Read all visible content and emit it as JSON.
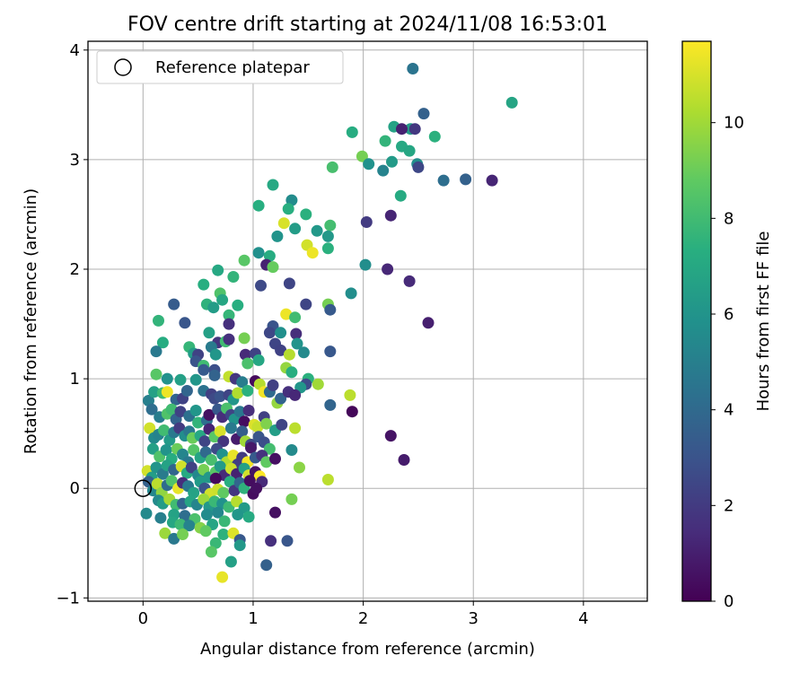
{
  "chart_data": {
    "type": "scatter",
    "title": "FOV centre drift starting at 2024/11/08 16:53:01",
    "xlabel": "Angular distance from reference (arcmin)",
    "ylabel": "Rotation from reference (arcmin)",
    "xlim": [
      -0.5,
      4.58
    ],
    "ylim": [
      -1.03,
      4.08
    ],
    "xticks": [
      0,
      1,
      2,
      3,
      4
    ],
    "yticks": [
      -1,
      0,
      1,
      2,
      3,
      4
    ],
    "grid": true,
    "legend": {
      "location": "upper-left",
      "entries": [
        "Reference platepar"
      ]
    },
    "reference_point": {
      "x": 0,
      "y": 0
    },
    "colorbar": {
      "label": "Hours from first FF file",
      "colormap": "viridis",
      "range": [
        0,
        11.7
      ],
      "ticks": [
        0,
        2,
        4,
        6,
        8,
        10
      ]
    },
    "points": [
      [
        2.45,
        3.83,
        4.5
      ],
      [
        3.35,
        3.52,
        6.8
      ],
      [
        2.55,
        3.42,
        3.6
      ],
      [
        2.28,
        3.3,
        6.7
      ],
      [
        2.43,
        3.28,
        6.4
      ],
      [
        2.35,
        3.28,
        1.1
      ],
      [
        2.47,
        3.28,
        1.9
      ],
      [
        1.9,
        3.25,
        7.2
      ],
      [
        2.2,
        3.17,
        7.6
      ],
      [
        2.35,
        3.12,
        7.0
      ],
      [
        2.65,
        3.21,
        7.4
      ],
      [
        2.42,
        3.08,
        6.9
      ],
      [
        1.99,
        3.03,
        9.2
      ],
      [
        2.05,
        2.96,
        5.9
      ],
      [
        2.18,
        2.9,
        5.2
      ],
      [
        2.26,
        2.98,
        6.3
      ],
      [
        2.49,
        2.96,
        5.7
      ],
      [
        2.5,
        2.93,
        2.5
      ],
      [
        1.72,
        2.93,
        8.2
      ],
      [
        2.73,
        2.81,
        4.2
      ],
      [
        2.93,
        2.82,
        3.6
      ],
      [
        3.17,
        2.81,
        1.2
      ],
      [
        1.18,
        2.77,
        7.0
      ],
      [
        2.34,
        2.67,
        7.1
      ],
      [
        1.05,
        2.58,
        7.3
      ],
      [
        1.35,
        2.63,
        5.6
      ],
      [
        1.32,
        2.55,
        7.3
      ],
      [
        1.28,
        2.42,
        11.0
      ],
      [
        1.48,
        2.5,
        7.4
      ],
      [
        2.03,
        2.43,
        2.0
      ],
      [
        2.25,
        2.49,
        1.2
      ],
      [
        1.38,
        2.37,
        6.4
      ],
      [
        1.58,
        2.35,
        6.2
      ],
      [
        1.7,
        2.4,
        8.1
      ],
      [
        1.68,
        2.3,
        6.2
      ],
      [
        1.22,
        2.3,
        6.0
      ],
      [
        1.49,
        2.22,
        10.9
      ],
      [
        1.68,
        2.19,
        7.4
      ],
      [
        1.54,
        2.15,
        11.4
      ],
      [
        0.92,
        2.08,
        8.6
      ],
      [
        1.05,
        2.15,
        5.8
      ],
      [
        1.15,
        2.12,
        7.2
      ],
      [
        1.12,
        2.04,
        1.1
      ],
      [
        1.18,
        2.02,
        8.9
      ],
      [
        2.02,
        2.04,
        5.7
      ],
      [
        0.68,
        1.99,
        7.0
      ],
      [
        0.55,
        1.86,
        7.3
      ],
      [
        0.82,
        1.93,
        7.6
      ],
      [
        2.22,
        2.0,
        1.3
      ],
      [
        2.42,
        1.89,
        1.4
      ],
      [
        1.07,
        1.85,
        2.6
      ],
      [
        1.33,
        1.87,
        2.4
      ],
      [
        0.7,
        1.78,
        8.4
      ],
      [
        0.72,
        1.72,
        6.9
      ],
      [
        0.58,
        1.68,
        7.5
      ],
      [
        0.64,
        1.65,
        6.4
      ],
      [
        0.28,
        1.68,
        3.4
      ],
      [
        0.78,
        1.58,
        7.7
      ],
      [
        0.86,
        1.67,
        7.3
      ],
      [
        1.48,
        1.68,
        2.4
      ],
      [
        1.68,
        1.68,
        9.2
      ],
      [
        1.7,
        1.63,
        3.3
      ],
      [
        1.89,
        1.78,
        5.7
      ],
      [
        1.3,
        1.59,
        11.4
      ],
      [
        1.38,
        1.56,
        8.0
      ],
      [
        0.14,
        1.53,
        7.6
      ],
      [
        0.38,
        1.51,
        3.1
      ],
      [
        0.78,
        1.5,
        1.6
      ],
      [
        2.59,
        1.51,
        1.0
      ],
      [
        1.18,
        1.48,
        3.0
      ],
      [
        1.15,
        1.42,
        2.5
      ],
      [
        1.25,
        1.42,
        5.8
      ],
      [
        1.39,
        1.41,
        1.5
      ],
      [
        0.6,
        1.42,
        6.6
      ],
      [
        0.92,
        1.37,
        9.2
      ],
      [
        0.18,
        1.33,
        7.2
      ],
      [
        0.42,
        1.29,
        7.7
      ],
      [
        0.68,
        1.33,
        1.8
      ],
      [
        0.75,
        1.34,
        8.0
      ],
      [
        0.78,
        1.36,
        1.6
      ],
      [
        1.2,
        1.32,
        2.4
      ],
      [
        0.12,
        1.25,
        4.7
      ],
      [
        0.46,
        1.23,
        6.4
      ],
      [
        0.5,
        1.22,
        2.3
      ],
      [
        0.62,
        1.29,
        4.8
      ],
      [
        0.66,
        1.22,
        6.1
      ],
      [
        0.93,
        1.22,
        1.4
      ],
      [
        1.02,
        1.23,
        2.3
      ],
      [
        1.25,
        1.26,
        2.3
      ],
      [
        1.4,
        1.32,
        6.0
      ],
      [
        1.46,
        1.24,
        5.5
      ],
      [
        1.7,
        1.25,
        3.2
      ],
      [
        0.48,
        1.16,
        3.0
      ],
      [
        0.55,
        1.12,
        8.0
      ],
      [
        0.95,
        1.14,
        8.3
      ],
      [
        1.05,
        1.17,
        6.9
      ],
      [
        0.55,
        1.08,
        3.3
      ],
      [
        0.65,
        1.08,
        2.8
      ],
      [
        0.12,
        1.04,
        8.6
      ],
      [
        0.22,
        1.0,
        5.9
      ],
      [
        0.34,
        0.99,
        6.6
      ],
      [
        0.48,
        0.99,
        6.1
      ],
      [
        0.65,
        1.03,
        3.7
      ],
      [
        0.78,
        1.02,
        10.6
      ],
      [
        0.84,
        1.0,
        1.8
      ],
      [
        1.3,
        1.1,
        9.8
      ],
      [
        1.33,
        1.22,
        10.4
      ],
      [
        1.35,
        1.06,
        7.3
      ],
      [
        1.5,
        1.0,
        7.4
      ],
      [
        1.59,
        0.95,
        10.0
      ],
      [
        1.48,
        0.95,
        2.7
      ],
      [
        1.43,
        0.92,
        6.1
      ],
      [
        0.05,
        0.8,
        5.0
      ],
      [
        0.1,
        0.88,
        6.6
      ],
      [
        0.18,
        0.87,
        7.9
      ],
      [
        0.22,
        0.88,
        11.4
      ],
      [
        0.3,
        0.81,
        3.8
      ],
      [
        0.36,
        0.82,
        2.3
      ],
      [
        0.4,
        0.89,
        3.8
      ],
      [
        0.55,
        0.89,
        4.4
      ],
      [
        0.62,
        0.86,
        2.2
      ],
      [
        0.65,
        0.82,
        2.6
      ],
      [
        0.7,
        0.84,
        3.0
      ],
      [
        0.78,
        0.85,
        2.4
      ],
      [
        0.82,
        0.81,
        6.1
      ],
      [
        0.86,
        0.87,
        10.3
      ],
      [
        0.9,
        0.97,
        4.9
      ],
      [
        0.95,
        0.89,
        7.4
      ],
      [
        1.02,
        0.98,
        0.3
      ],
      [
        1.06,
        0.95,
        10.4
      ],
      [
        1.1,
        0.88,
        11.5
      ],
      [
        1.15,
        0.88,
        4.0
      ],
      [
        1.18,
        0.94,
        2.2
      ],
      [
        1.22,
        0.78,
        9.8
      ],
      [
        1.25,
        0.82,
        3.7
      ],
      [
        1.32,
        0.88,
        1.6
      ],
      [
        1.38,
        0.85,
        1.3
      ],
      [
        1.7,
        0.76,
        3.8
      ],
      [
        1.88,
        0.85,
        10.5
      ],
      [
        1.9,
        0.7,
        0.2
      ],
      [
        0.08,
        0.72,
        4.2
      ],
      [
        0.15,
        0.65,
        4.9
      ],
      [
        0.22,
        0.68,
        8.4
      ],
      [
        0.26,
        0.72,
        8.0
      ],
      [
        0.3,
        0.63,
        3.7
      ],
      [
        0.34,
        0.7,
        2.3
      ],
      [
        0.42,
        0.66,
        4.3
      ],
      [
        0.48,
        0.71,
        6.1
      ],
      [
        0.5,
        0.6,
        7.6
      ],
      [
        0.58,
        0.62,
        4.3
      ],
      [
        0.6,
        0.67,
        0.5
      ],
      [
        0.68,
        0.72,
        3.2
      ],
      [
        0.72,
        0.65,
        1.5
      ],
      [
        0.76,
        0.73,
        8.3
      ],
      [
        0.8,
        0.67,
        2.4
      ],
      [
        0.83,
        0.63,
        6.0
      ],
      [
        0.88,
        0.7,
        4.6
      ],
      [
        0.92,
        0.61,
        0.4
      ],
      [
        0.96,
        0.71,
        1.5
      ],
      [
        1.01,
        0.58,
        11.1
      ],
      [
        1.04,
        0.56,
        10.7
      ],
      [
        1.1,
        0.65,
        2.2
      ],
      [
        1.12,
        0.59,
        9.4
      ],
      [
        1.2,
        0.53,
        6.5
      ],
      [
        1.26,
        0.58,
        2.4
      ],
      [
        1.38,
        0.55,
        10.5
      ],
      [
        0.06,
        0.55,
        10.9
      ],
      [
        0.1,
        0.46,
        5.5
      ],
      [
        0.14,
        0.49,
        5.2
      ],
      [
        0.19,
        0.53,
        8.0
      ],
      [
        0.24,
        0.44,
        6.3
      ],
      [
        0.28,
        0.51,
        4.7
      ],
      [
        0.33,
        0.55,
        2.0
      ],
      [
        0.38,
        0.48,
        5.7
      ],
      [
        0.42,
        0.52,
        4.6
      ],
      [
        0.45,
        0.46,
        9.0
      ],
      [
        0.52,
        0.48,
        7.0
      ],
      [
        0.56,
        0.43,
        2.4
      ],
      [
        0.6,
        0.54,
        1.2
      ],
      [
        0.65,
        0.47,
        8.6
      ],
      [
        0.7,
        0.52,
        11.0
      ],
      [
        0.73,
        0.43,
        1.8
      ],
      [
        0.8,
        0.55,
        4.7
      ],
      [
        0.85,
        0.45,
        0.9
      ],
      [
        0.9,
        0.52,
        3.5
      ],
      [
        0.93,
        0.43,
        10.0
      ],
      [
        0.98,
        0.4,
        2.6
      ],
      [
        1.05,
        0.47,
        3.1
      ],
      [
        1.1,
        0.42,
        2.8
      ],
      [
        1.15,
        0.36,
        8.1
      ],
      [
        1.35,
        0.35,
        5.5
      ],
      [
        2.25,
        0.48,
        0.6
      ],
      [
        2.37,
        0.26,
        0.9
      ],
      [
        0.09,
        0.36,
        6.6
      ],
      [
        0.15,
        0.29,
        8.4
      ],
      [
        0.21,
        0.35,
        6.0
      ],
      [
        0.26,
        0.27,
        7.2
      ],
      [
        0.31,
        0.36,
        9.0
      ],
      [
        0.36,
        0.31,
        5.3
      ],
      [
        0.41,
        0.24,
        4.7
      ],
      [
        0.46,
        0.35,
        8.5
      ],
      [
        0.52,
        0.28,
        6.8
      ],
      [
        0.57,
        0.33,
        4.0
      ],
      [
        0.62,
        0.26,
        8.2
      ],
      [
        0.67,
        0.36,
        2.6
      ],
      [
        0.72,
        0.31,
        5.9
      ],
      [
        0.76,
        0.24,
        10.3
      ],
      [
        0.82,
        0.3,
        11.3
      ],
      [
        0.86,
        0.22,
        2.2
      ],
      [
        0.9,
        0.28,
        2.0
      ],
      [
        0.95,
        0.24,
        11.5
      ],
      [
        0.98,
        0.37,
        0.8
      ],
      [
        1.02,
        0.28,
        3.3
      ],
      [
        1.08,
        0.3,
        1.7
      ],
      [
        1.12,
        0.24,
        8.8
      ],
      [
        1.2,
        0.27,
        0.5
      ],
      [
        1.42,
        0.19,
        9.6
      ],
      [
        1.68,
        0.08,
        10.5
      ],
      [
        0.04,
        0.16,
        10.9
      ],
      [
        0.08,
        0.1,
        6.5
      ],
      [
        0.12,
        0.19,
        6.0
      ],
      [
        0.18,
        0.13,
        4.8
      ],
      [
        0.22,
        0.21,
        6.7
      ],
      [
        0.28,
        0.17,
        3.8
      ],
      [
        0.35,
        0.2,
        10.9
      ],
      [
        0.4,
        0.14,
        7.1
      ],
      [
        0.44,
        0.19,
        2.3
      ],
      [
        0.5,
        0.12,
        5.4
      ],
      [
        0.55,
        0.17,
        9.2
      ],
      [
        0.6,
        0.1,
        6.2
      ],
      [
        0.66,
        0.15,
        8.6
      ],
      [
        0.7,
        0.2,
        6.3
      ],
      [
        0.74,
        0.12,
        1.4
      ],
      [
        0.8,
        0.18,
        10.8
      ],
      [
        0.85,
        0.13,
        1.1
      ],
      [
        0.92,
        0.18,
        6.6
      ],
      [
        0.96,
        0.12,
        10.9
      ],
      [
        1.02,
        0.15,
        0.6
      ],
      [
        1.06,
        0.11,
        11.7
      ],
      [
        1.08,
        0.06,
        1.4
      ],
      [
        0.05,
        0.06,
        3.6
      ],
      [
        0.09,
        -0.02,
        5.4
      ],
      [
        0.13,
        0.04,
        10.5
      ],
      [
        0.17,
        -0.04,
        9.7
      ],
      [
        0.22,
        0.03,
        4.1
      ],
      [
        0.26,
        0.07,
        8.4
      ],
      [
        0.32,
        0.0,
        11.3
      ],
      [
        0.36,
        0.05,
        1.5
      ],
      [
        0.41,
        0.02,
        4.7
      ],
      [
        0.46,
        -0.04,
        6.7
      ],
      [
        0.52,
        0.06,
        6.3
      ],
      [
        0.56,
        0.0,
        3.0
      ],
      [
        0.61,
        -0.05,
        10.9
      ],
      [
        0.66,
        0.09,
        0.3
      ],
      [
        0.68,
        -0.01,
        10.8
      ],
      [
        0.73,
        -0.04,
        8.8
      ],
      [
        0.79,
        0.06,
        7.3
      ],
      [
        0.83,
        -0.02,
        1.8
      ],
      [
        0.88,
        0.05,
        3.8
      ],
      [
        0.92,
        0.0,
        7.5
      ],
      [
        0.97,
        0.07,
        0.4
      ],
      [
        1.0,
        -0.05,
        0.4
      ],
      [
        1.03,
        0.0,
        0.5
      ],
      [
        1.35,
        -0.1,
        9.2
      ],
      [
        0.14,
        -0.11,
        5.5
      ],
      [
        0.18,
        -0.14,
        6.4
      ],
      [
        0.24,
        -0.1,
        10.1
      ],
      [
        0.3,
        -0.15,
        8.0
      ],
      [
        0.36,
        -0.14,
        3.8
      ],
      [
        0.43,
        -0.12,
        6.8
      ],
      [
        0.49,
        -0.15,
        5.3
      ],
      [
        0.55,
        -0.1,
        9.9
      ],
      [
        0.6,
        -0.17,
        6.2
      ],
      [
        0.65,
        -0.12,
        7.8
      ],
      [
        0.72,
        -0.14,
        5.9
      ],
      [
        0.78,
        -0.17,
        7.9
      ],
      [
        0.85,
        -0.12,
        10.4
      ],
      [
        0.92,
        -0.18,
        6.3
      ],
      [
        1.2,
        -0.22,
        0.5
      ],
      [
        0.03,
        -0.23,
        5.5
      ],
      [
        0.16,
        -0.27,
        5.0
      ],
      [
        0.28,
        -0.24,
        6.7
      ],
      [
        0.38,
        -0.25,
        4.2
      ],
      [
        0.47,
        -0.28,
        8.3
      ],
      [
        0.58,
        -0.24,
        5.6
      ],
      [
        0.68,
        -0.22,
        5.4
      ],
      [
        0.74,
        -0.3,
        7.8
      ],
      [
        0.86,
        -0.24,
        6.1
      ],
      [
        0.96,
        -0.26,
        7.1
      ],
      [
        0.27,
        -0.31,
        6.9
      ],
      [
        0.34,
        -0.33,
        7.9
      ],
      [
        0.42,
        -0.34,
        5.2
      ],
      [
        0.52,
        -0.36,
        9.5
      ],
      [
        0.63,
        -0.33,
        6.8
      ],
      [
        0.2,
        -0.41,
        9.9
      ],
      [
        0.28,
        -0.46,
        4.7
      ],
      [
        0.36,
        -0.42,
        9.2
      ],
      [
        0.57,
        -0.39,
        8.8
      ],
      [
        0.73,
        -0.42,
        7.5
      ],
      [
        0.82,
        -0.41,
        11.1
      ],
      [
        0.88,
        -0.47,
        3.2
      ],
      [
        0.66,
        -0.5,
        7.8
      ],
      [
        0.88,
        -0.52,
        6.2
      ],
      [
        1.16,
        -0.48,
        1.6
      ],
      [
        1.31,
        -0.48,
        3.1
      ],
      [
        0.62,
        -0.58,
        8.6
      ],
      [
        0.8,
        -0.67,
        6.6
      ],
      [
        1.12,
        -0.7,
        3.6
      ],
      [
        0.72,
        -0.81,
        11.3
      ]
    ]
  }
}
